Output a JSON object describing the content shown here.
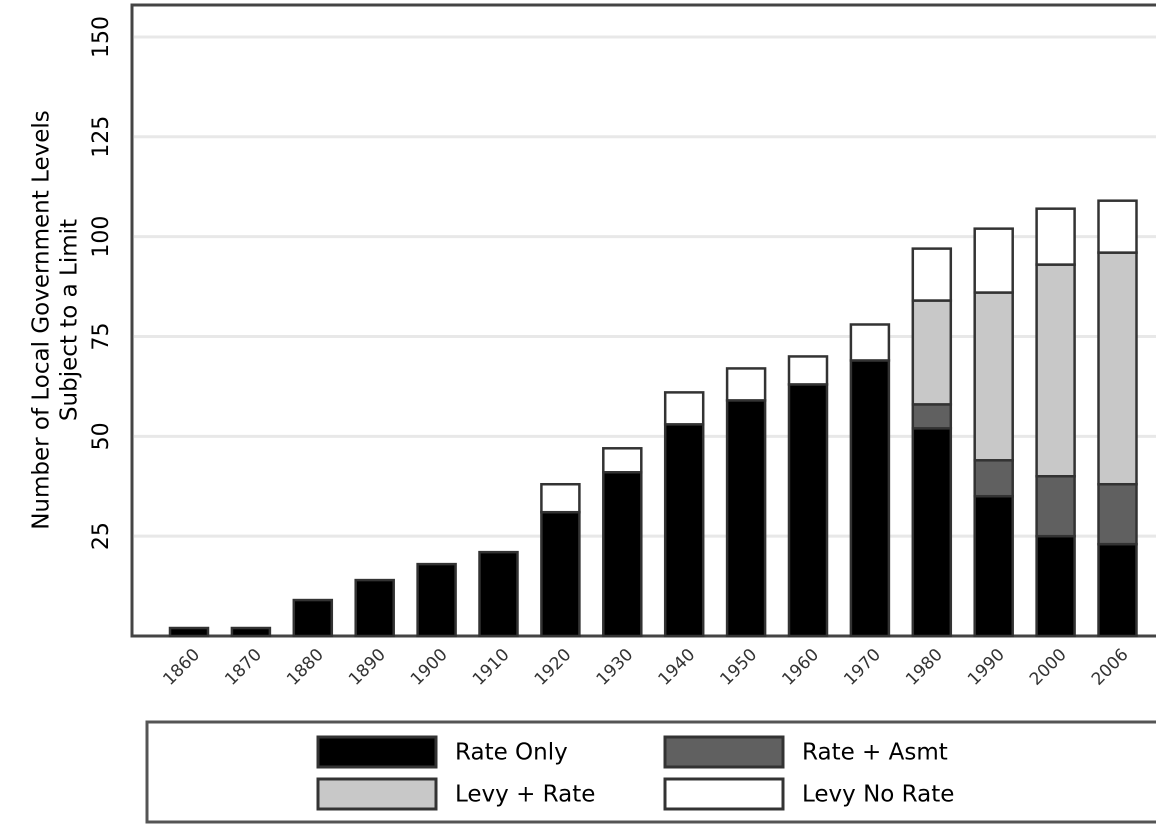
{
  "chart_data": {
    "type": "stacked_bar",
    "ylabel": [
      "Number of Local Government Levels",
      "Subject to a Limit"
    ],
    "categories": [
      "1860",
      "1870",
      "1880",
      "1890",
      "1900",
      "1910",
      "1920",
      "1930",
      "1940",
      "1950",
      "1960",
      "1970",
      "1980",
      "1990",
      "2000",
      "2006"
    ],
    "series": [
      {
        "name": "Rate Only",
        "color": "#000000",
        "values": [
          2,
          2,
          9,
          14,
          18,
          21,
          31,
          41,
          53,
          59,
          63,
          69,
          52,
          35,
          25,
          23
        ]
      },
      {
        "name": "Rate + Asmt",
        "color": "#606060",
        "values": [
          0,
          0,
          0,
          0,
          0,
          0,
          0,
          0,
          0,
          0,
          0,
          0,
          6,
          9,
          15,
          15
        ]
      },
      {
        "name": "Levy + Rate",
        "color": "#c8c8c8",
        "values": [
          0,
          0,
          0,
          0,
          0,
          0,
          0,
          0,
          0,
          0,
          0,
          0,
          26,
          42,
          53,
          58
        ]
      },
      {
        "name": "Levy No Rate",
        "color": "#ffffff",
        "values": [
          0,
          0,
          0,
          0,
          0,
          0,
          7,
          6,
          8,
          8,
          7,
          9,
          13,
          16,
          14,
          13
        ]
      }
    ],
    "ylim": [
      0,
      158
    ],
    "yticks": [
      25,
      50,
      75,
      100,
      125,
      150
    ],
    "grid": true
  }
}
